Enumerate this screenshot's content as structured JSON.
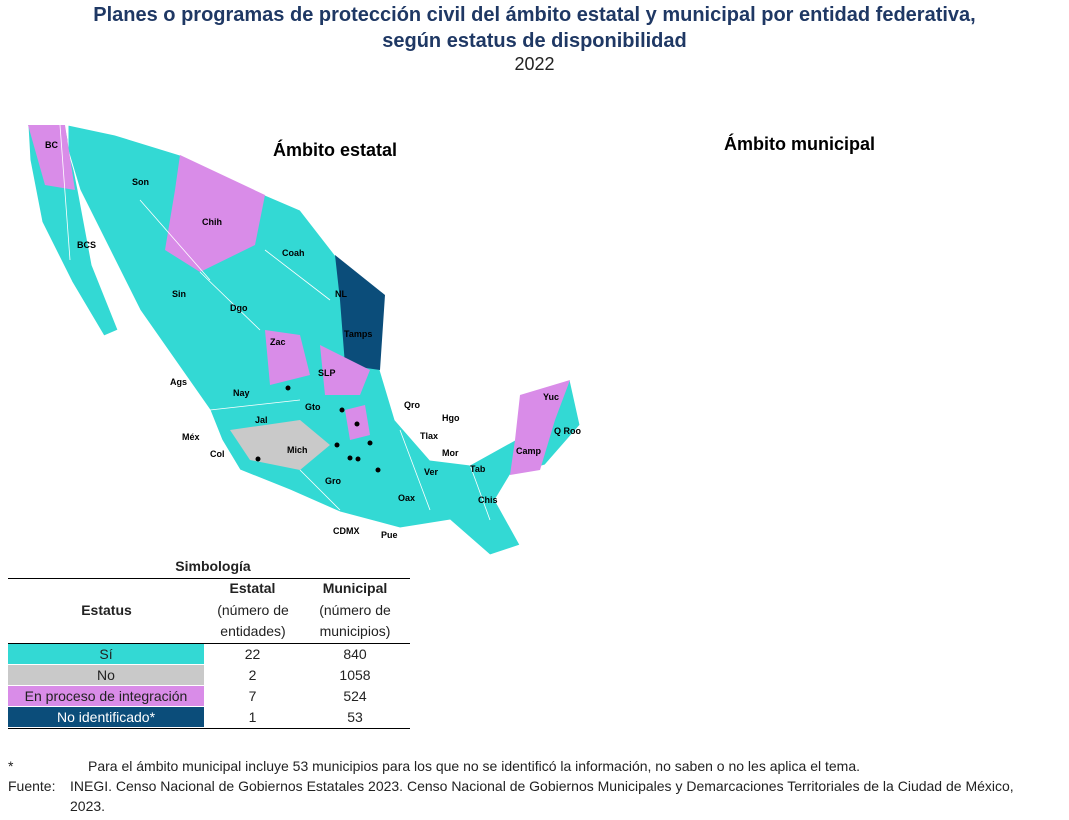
{
  "header": {
    "title_lines": [
      "Planes o programas de protección civil del ámbito estatal y municipal por entidad federativa,",
      "según estatus de disponibilidad"
    ],
    "year": "2022"
  },
  "maps": [
    {
      "title": "Ámbito estatal",
      "labels": [
        "BC",
        "Son",
        "Chih",
        "BCS",
        "Coah",
        "Sin",
        "Dgo",
        "NL",
        "Tamps",
        "Zac",
        "SLP",
        "Ags",
        "Nay",
        "Jal",
        "Gto",
        "Qro",
        "Hgo",
        "Méx",
        "Tlax",
        "Col",
        "Mich",
        "Mor",
        "Gro",
        "Ver",
        "Oax",
        "Tab",
        "Chis",
        "CDMX",
        "Pue",
        "Yuc",
        "Q Roo",
        "Camp"
      ]
    },
    {
      "title": "Ámbito municipal"
    }
  ],
  "legend": {
    "title": "Simbología",
    "headers": {
      "status": "Estatus",
      "state": "Estatal",
      "state_unit": "(número de entidades)",
      "municipal": "Municipal",
      "municipal_unit": "(número de municipios)"
    },
    "rows": [
      {
        "status": "Sí",
        "state": "22",
        "municipal": "840",
        "color": "#33d9d4",
        "text_color": "#222222"
      },
      {
        "status": "No",
        "state": "2",
        "municipal": "1058",
        "color": "#c9c9c9",
        "text_color": "#222222"
      },
      {
        "status": "En proceso de integración",
        "state": "7",
        "municipal": "524",
        "color": "#d98ce8",
        "text_color": "#222222"
      },
      {
        "status": "No identificado*",
        "state": "1",
        "municipal": "53",
        "color": "#0b4d7a",
        "text_color": "#ffffff"
      }
    ]
  },
  "notes": {
    "star_mark": "*",
    "star_text": "Para el ámbito municipal incluye 53 municipios para los que no se identificó la información, no saben o no les aplica el tema.",
    "source_label": "Fuente:",
    "source_text": "INEGI. Censo Nacional de Gobiernos Estatales 2023. Censo Nacional de Gobiernos Municipales y Demarcaciones Territoriales de la Ciudad de México, 2023."
  }
}
